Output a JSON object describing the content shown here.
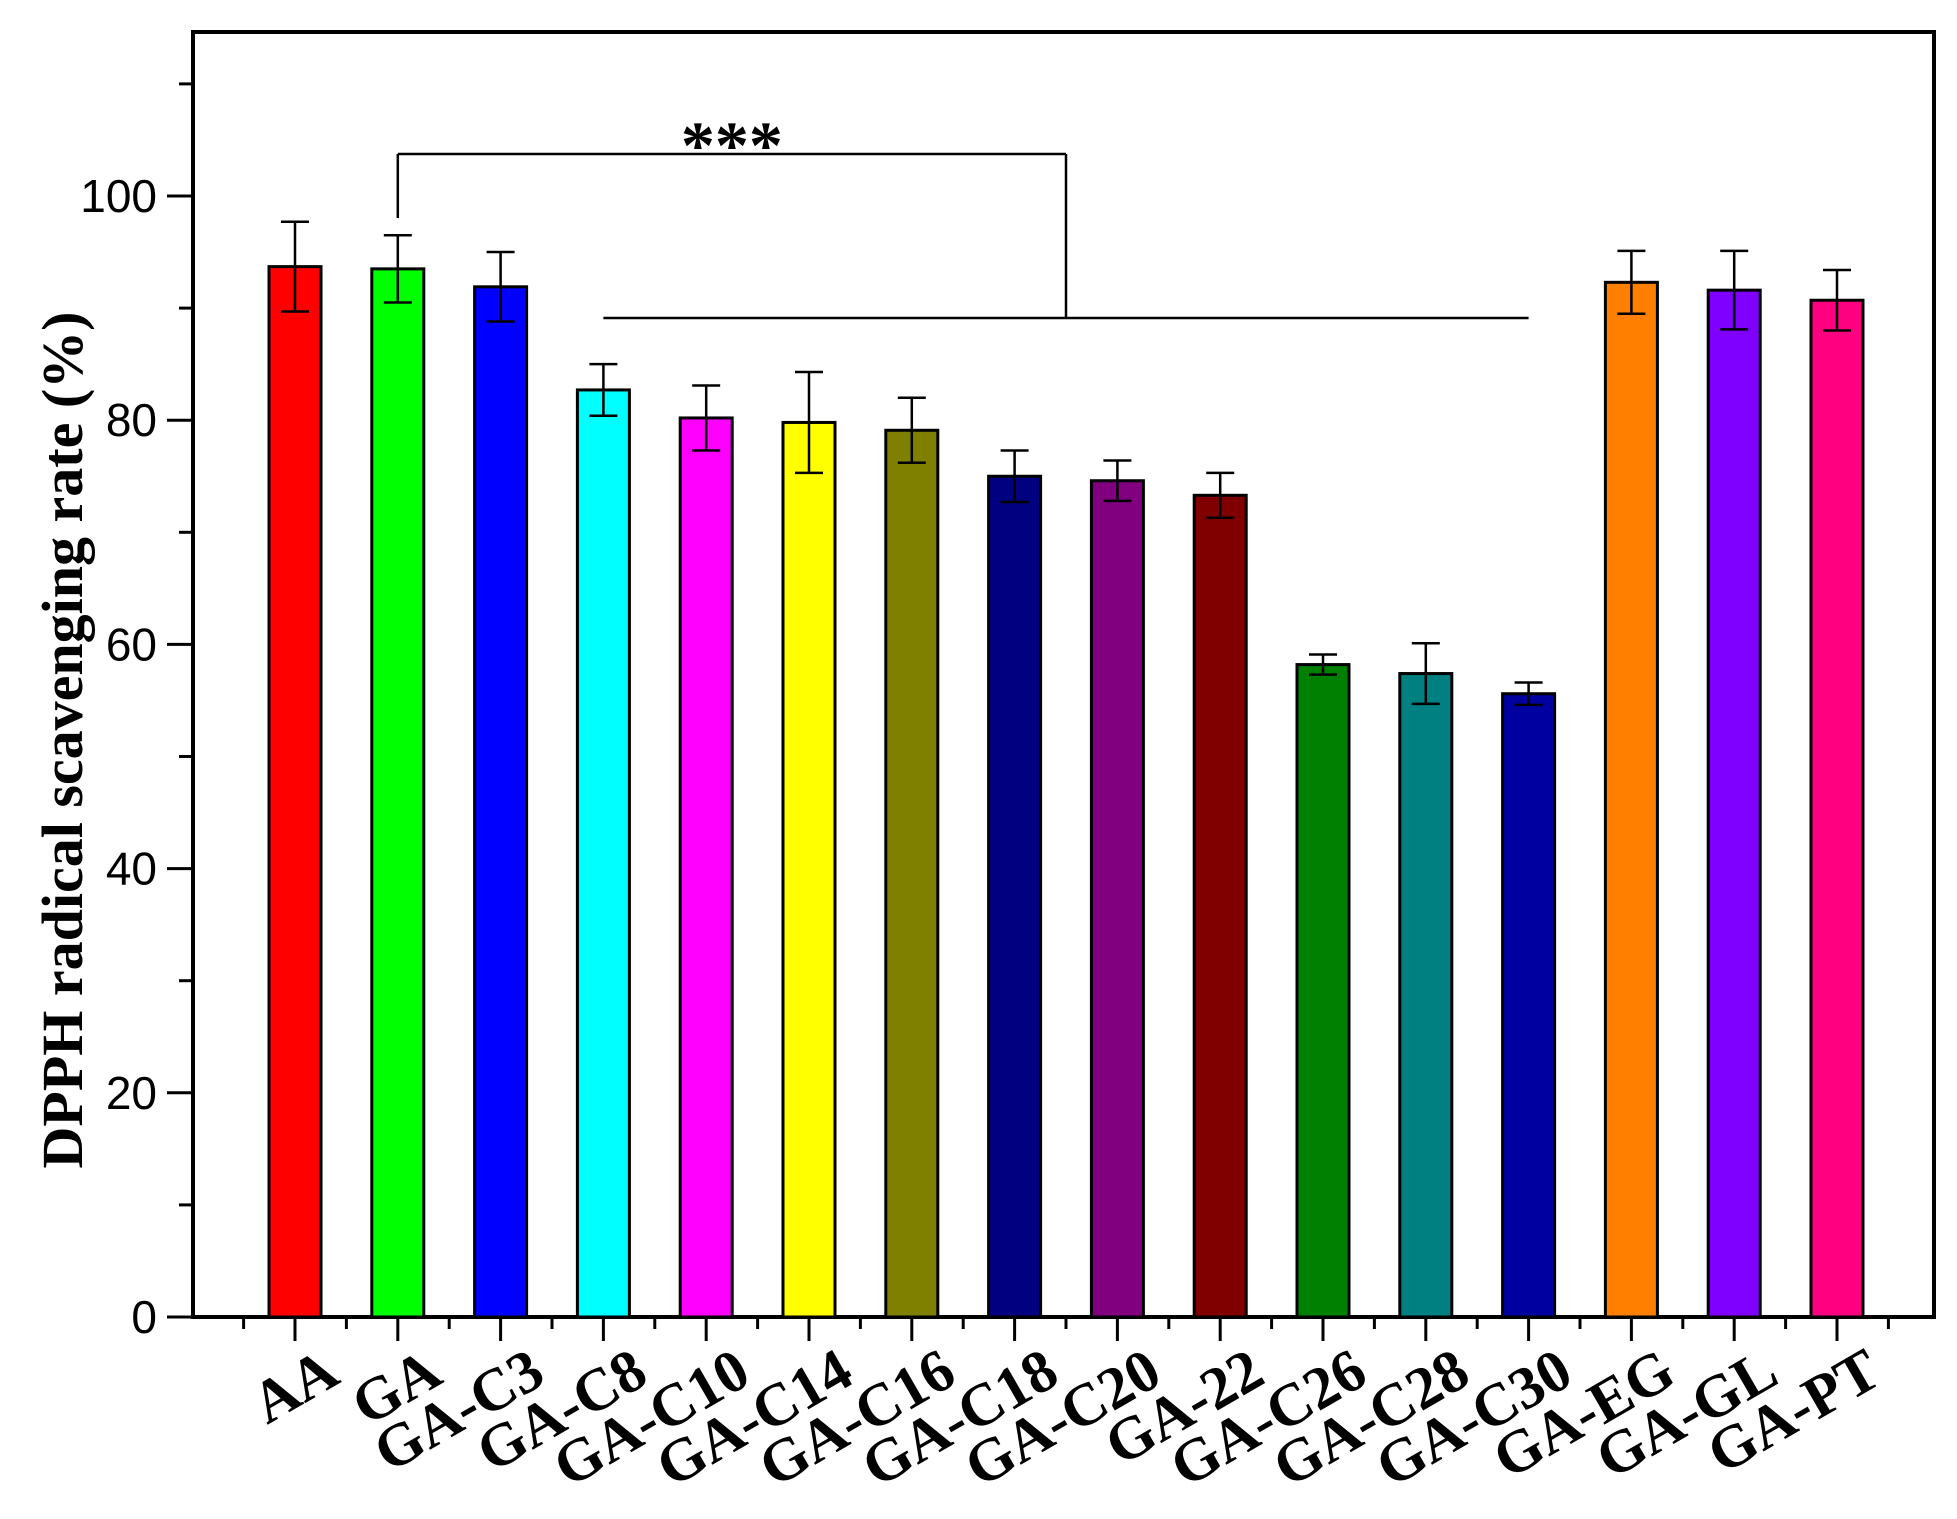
{
  "chart_data": {
    "type": "bar",
    "title": "",
    "xlabel": "",
    "ylabel": "DPPH radical scavenging rate (%)",
    "ylim": [
      0,
      115
    ],
    "yticks": [
      0,
      20,
      40,
      60,
      80,
      100
    ],
    "grid": false,
    "categories": [
      "AA",
      "GA",
      "GA-C3",
      "GA-C8",
      "GA-C10",
      "GA-C14",
      "GA-C16",
      "GA-C18",
      "GA-C20",
      "GA-22",
      "GA-C26",
      "GA-C28",
      "GA-C30",
      "GA-EG",
      "GA-GL",
      "GA-PT"
    ],
    "values": [
      93.7,
      93.5,
      91.9,
      82.7,
      80.2,
      79.8,
      79.1,
      75.0,
      74.6,
      73.3,
      58.2,
      57.4,
      55.6,
      92.3,
      91.6,
      90.7
    ],
    "errors": [
      4.0,
      3.0,
      3.1,
      2.3,
      2.9,
      4.5,
      2.9,
      2.3,
      1.8,
      2.0,
      0.9,
      2.7,
      1.0,
      2.8,
      3.5,
      2.7
    ],
    "colors": [
      "#ff0000",
      "#00ff00",
      "#0000ff",
      "#00ffff",
      "#ff00ff",
      "#ffff00",
      "#808000",
      "#000080",
      "#800080",
      "#800000",
      "#008000",
      "#008080",
      "#0000a0",
      "#ff8000",
      "#8000ff",
      "#ff0080"
    ],
    "annotation": {
      "text": "***",
      "from_category": "GA",
      "bracket_range": [
        "GA-C8",
        "GA-C30"
      ]
    }
  }
}
